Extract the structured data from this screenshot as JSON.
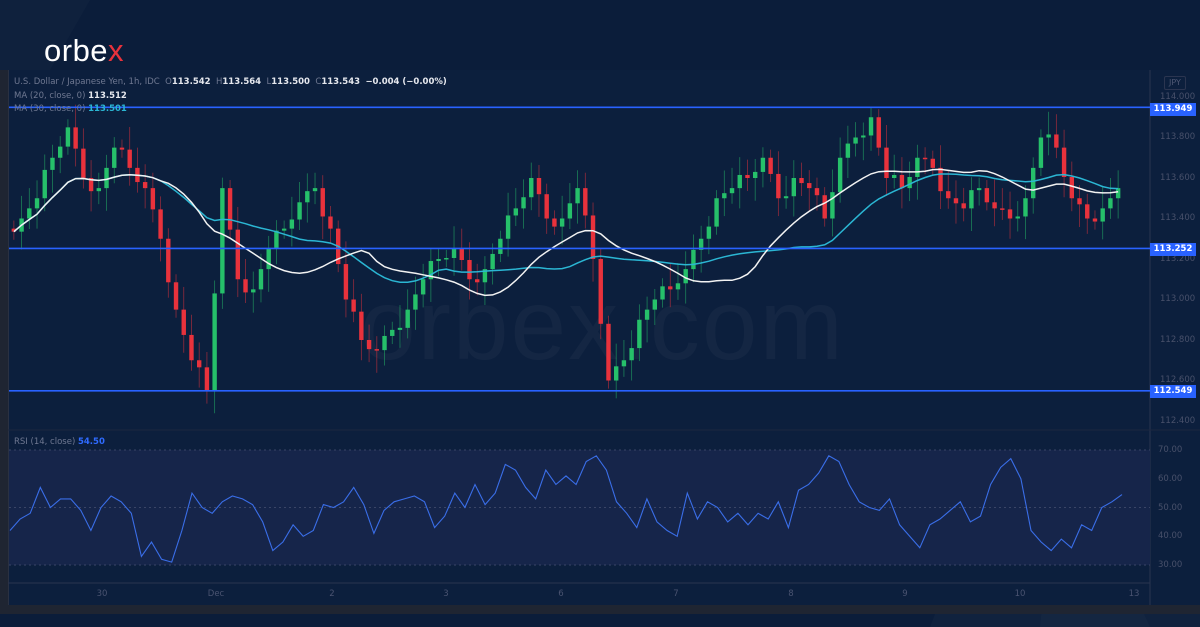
{
  "brand": {
    "logo_main": "orbe",
    "logo_accent": "x",
    "accent_color": "#e8323c",
    "watermark": "orbex.com"
  },
  "legend": {
    "symbol": "U.S. Dollar / Japanese Yen, 1h, IDC",
    "open_label": "O",
    "open": "113.542",
    "high_label": "H",
    "high": "113.564",
    "low_label": "L",
    "low": "113.500",
    "close_label": "C",
    "close": "113.543",
    "change": "−0.004 (−0.00%)",
    "ma20_label": "MA (20, close, 0)",
    "ma20_value": "113.512",
    "ma30_label": "MA (30, close, 0)",
    "ma30_value": "113.501",
    "rsi_label": "RSI (14, close)",
    "rsi_value": "54.50"
  },
  "axis": {
    "currency": "JPY",
    "price_ticks": [
      "114.000",
      "113.800",
      "113.600",
      "113.400",
      "113.200",
      "113.000",
      "112.800",
      "112.600",
      "112.400"
    ],
    "rsi_ticks": [
      "70.00",
      "60.00",
      "50.00",
      "40.00",
      "30.00"
    ],
    "x_ticks": [
      "30",
      "Dec",
      "2",
      "3",
      "6",
      "7",
      "8",
      "9",
      "10",
      "13"
    ]
  },
  "levels": [
    {
      "label": "113.949",
      "value": 113.949
    },
    {
      "label": "113.252",
      "value": 113.252
    },
    {
      "label": "112.549",
      "value": 112.549
    }
  ],
  "colors": {
    "up": "#26c06a",
    "down": "#e8323c",
    "ma20": "#f2f2f2",
    "ma30": "#2bb6d3",
    "level": "#2962ff",
    "rsi": "#3a6ee8"
  },
  "chart_data": [
    {
      "type": "candlestick",
      "title": "U.S. Dollar / Japanese Yen, 1h, IDC",
      "xlabel": "",
      "ylabel": "JPY",
      "ylim": [
        112.35,
        114.05
      ],
      "x": [
        "30",
        "Dec",
        "2",
        "3",
        "6",
        "7",
        "8",
        "9",
        "10",
        "13"
      ],
      "horizontal_levels": [
        113.949,
        113.252,
        112.549
      ],
      "series": [
        {
          "name": "MA (20, close, 0)",
          "last": 113.512
        },
        {
          "name": "MA (30, close, 0)",
          "last": 113.501
        }
      ],
      "last_ohlc": {
        "open": 113.542,
        "high": 113.564,
        "low": 113.5,
        "close": 113.543,
        "change": -0.004,
        "change_pct": -0.0
      },
      "approx_closes": [
        113.4,
        113.5,
        113.7,
        113.85,
        113.6,
        113.55,
        113.75,
        113.65,
        113.55,
        113.3,
        112.95,
        112.7,
        112.55,
        113.55,
        113.1,
        113.05,
        113.25,
        113.35,
        113.48,
        113.55,
        113.35,
        113.0,
        112.8,
        112.75,
        112.85,
        112.95,
        113.1,
        113.2,
        113.25,
        113.1,
        113.15,
        113.3,
        113.45,
        113.6,
        113.4,
        113.4,
        113.55,
        113.2,
        112.6,
        112.7,
        112.9,
        113.0,
        113.05,
        113.15,
        113.3,
        113.5,
        113.55,
        113.6,
        113.7,
        113.5,
        113.6,
        113.55,
        113.4,
        113.7,
        113.8,
        113.9,
        113.6,
        113.55,
        113.7,
        113.65,
        113.5,
        113.45,
        113.55,
        113.45,
        113.4,
        113.5,
        113.8,
        113.75,
        113.5,
        113.4,
        113.45,
        113.55
      ]
    },
    {
      "type": "line",
      "title": "RSI (14, close)",
      "ylim": [
        25,
        72
      ],
      "reference_lines": [
        70,
        50,
        30
      ],
      "last": 54.5,
      "approx_values": [
        42,
        46,
        48,
        57,
        50,
        53,
        53,
        49,
        42,
        50,
        54,
        52,
        48,
        33,
        38,
        32,
        31,
        42,
        55,
        50,
        48,
        52,
        54,
        53,
        51,
        45,
        35,
        38,
        44,
        40,
        42,
        51,
        50,
        52,
        57,
        51,
        41,
        49,
        52,
        53,
        54,
        52,
        43,
        47,
        55,
        50,
        58,
        51,
        55,
        65,
        63,
        57,
        53,
        63,
        58,
        61,
        58,
        66,
        68,
        63,
        52,
        48,
        43,
        53,
        45,
        42,
        40,
        55,
        46,
        52,
        50,
        45,
        48,
        44,
        48,
        46,
        52,
        43,
        56,
        58,
        62,
        68,
        66,
        58,
        52,
        50,
        49,
        53,
        44,
        40,
        36,
        44,
        46,
        49,
        52,
        45,
        47,
        58,
        64,
        67,
        60,
        42,
        38,
        35,
        39,
        36,
        44,
        42,
        50,
        52,
        54.5
      ]
    }
  ]
}
